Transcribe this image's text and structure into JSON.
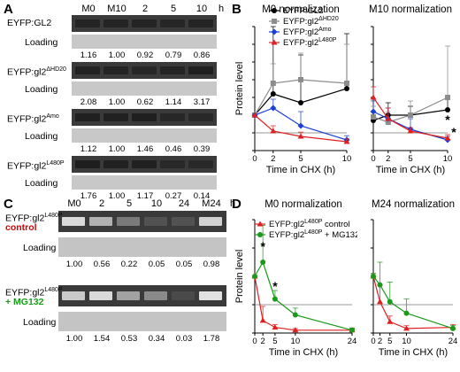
{
  "panel_labels": {
    "a": "A",
    "b": "B",
    "c": "C",
    "d": "D"
  },
  "panelA": {
    "lanes": [
      "M0",
      "M10",
      "2",
      "5",
      "10"
    ],
    "unit": "h",
    "loading_label": "Loading",
    "blots": [
      {
        "name": "EYFP:GL2",
        "quant": [
          "1.16",
          "1.00",
          "0.92",
          "0.79",
          "0.86"
        ],
        "intensity": [
          0.55,
          0.55,
          0.5,
          0.45,
          0.5
        ]
      },
      {
        "name": "EYFP:gl2",
        "sup": "ΔHD20",
        "quant": [
          "2.08",
          "1.00",
          "0.62",
          "1.14",
          "3.17"
        ],
        "intensity": [
          0.7,
          0.5,
          0.35,
          0.55,
          0.9
        ]
      },
      {
        "name": "EYFP:gl2",
        "sup": "Amo",
        "quant": [
          "1.12",
          "1.00",
          "1.46",
          "0.46",
          "0.39"
        ],
        "intensity": [
          0.8,
          0.75,
          0.9,
          0.35,
          0.3
        ]
      },
      {
        "name": "EYFP:gl2",
        "sup": "L480P",
        "quant": [
          "1.76",
          "1.00",
          "1.17",
          "0.27",
          "0.14"
        ],
        "intensity": [
          0.95,
          0.75,
          0.85,
          0.25,
          0.15
        ]
      }
    ]
  },
  "panelC": {
    "lanes": [
      "M0",
      "2",
      "5",
      "10",
      "24",
      "M24"
    ],
    "unit": "h",
    "loading_label": "Loading",
    "blots": [
      {
        "name": "EYFP:gl2",
        "sup": "L480P",
        "sub": "control",
        "sub_color": "#d40000",
        "quant": [
          "1.00",
          "0.56",
          "0.22",
          "0.05",
          "0.05",
          "0.98"
        ],
        "intensity": [
          0.95,
          0.7,
          0.35,
          0.1,
          0.1,
          0.9
        ]
      },
      {
        "name": "EYFP:gl2",
        "sup": "L480P",
        "sub": "+ MG132",
        "sub_color": "#1a9a1a",
        "quant": [
          "1.00",
          "1.54",
          "0.53",
          "0.34",
          "0.03",
          "1.78"
        ],
        "intensity": [
          0.85,
          0.95,
          0.6,
          0.45,
          0.05,
          1.0
        ]
      }
    ]
  },
  "chart_data": [
    {
      "type": "line",
      "title": "M0 normalization",
      "xlabel": "Time in CHX (h)",
      "ylabel": "Protein level",
      "x": [
        0,
        2,
        5,
        10
      ],
      "xticks": [
        0,
        2,
        5,
        10
      ],
      "ylim": [
        0,
        3.5
      ],
      "yticks": [
        0,
        0.5,
        1,
        1.5,
        2,
        2.5,
        3,
        3.5
      ],
      "series": [
        {
          "name": "EYFP:GL2",
          "color": "#000000",
          "marker": "circle",
          "values": [
            1.0,
            1.6,
            1.35,
            1.75
          ],
          "err": [
            0,
            1.9,
            1.35,
            1.55
          ]
        },
        {
          "name": "EYFP:gl2ΔHD20",
          "color": "#8c8c8c",
          "marker": "square",
          "values": [
            1.0,
            1.9,
            2.0,
            1.9
          ],
          "err": [
            0,
            0.55,
            0.75,
            1.1
          ]
        },
        {
          "name": "EYFP:gl2Amo",
          "color": "#1a3fd4",
          "marker": "diamond",
          "values": [
            1.0,
            1.2,
            0.7,
            0.3
          ],
          "err": [
            0,
            0.25,
            0.4,
            0.12
          ]
        },
        {
          "name": "EYFP:gl2L480P",
          "color": "#e02020",
          "marker": "triangle",
          "values": [
            1.0,
            0.55,
            0.4,
            0.25
          ],
          "err": [
            0,
            0.15,
            0.12,
            0.08
          ]
        }
      ],
      "legend": [
        {
          "label": "EYFP:GL2",
          "sup": ""
        },
        {
          "label": "EYFP:gl2",
          "sup": "ΔHD20"
        },
        {
          "label": "EYFP:gl2",
          "sup": "Amo"
        },
        {
          "label": "EYFP:gl2",
          "sup": "L480P"
        }
      ],
      "legend_position": "top-right"
    },
    {
      "type": "line",
      "title": "M10 normalization",
      "xlabel": "Time in CHX (h)",
      "ylabel": "",
      "x": [
        0,
        2,
        5,
        10
      ],
      "xticks": [
        0,
        2,
        5,
        10
      ],
      "ylim": [
        0,
        3.5
      ],
      "yticks": [
        0,
        0.5,
        1,
        1.5,
        2,
        2.5,
        3,
        3.5
      ],
      "annotations": [
        "*",
        "*"
      ],
      "series": [
        {
          "name": "EYFP:GL2",
          "color": "#000000",
          "marker": "circle",
          "values": [
            0.85,
            1.0,
            1.0,
            1.15
          ],
          "err": [
            0.15,
            0.35,
            0.25,
            0.3
          ]
        },
        {
          "name": "EYFP:gl2ΔHD20",
          "color": "#8c8c8c",
          "marker": "square",
          "values": [
            0.95,
            0.8,
            1.0,
            1.5
          ],
          "err": [
            0.3,
            0.3,
            0.4,
            1.45
          ]
        },
        {
          "name": "EYFP:gl2Amo",
          "color": "#1a3fd4",
          "marker": "diamond",
          "values": [
            1.1,
            0.9,
            0.6,
            0.3
          ],
          "err": [
            0.3,
            0.3,
            0.3,
            0.1
          ]
        },
        {
          "name": "EYFP:gl2L480P",
          "color": "#e02020",
          "marker": "triangle",
          "values": [
            1.5,
            0.9,
            0.55,
            0.35
          ],
          "err": [
            0.3,
            0.3,
            0.1,
            0.1
          ]
        }
      ]
    },
    {
      "type": "line",
      "title": "M0 normalization",
      "xlabel": "Time in CHX (h)",
      "ylabel": "Protein level",
      "x": [
        0,
        2,
        5,
        10,
        24
      ],
      "xticks": [
        0,
        2,
        5,
        10,
        24
      ],
      "ylim": [
        0,
        2
      ],
      "yticks": [
        0,
        0.5,
        1,
        1.5,
        2
      ],
      "annotations": [
        "*",
        "*"
      ],
      "series": [
        {
          "name": "EYFP:gl2L480P control",
          "color": "#e02020",
          "marker": "triangle",
          "values": [
            1.0,
            0.22,
            0.1,
            0.05,
            0.05
          ],
          "err": [
            0,
            0.25,
            0.05,
            0.03,
            0.03
          ]
        },
        {
          "name": "EYFP:gl2L480P + MG132",
          "color": "#1a9a1a",
          "marker": "circle",
          "values": [
            1.0,
            1.25,
            0.6,
            0.32,
            0.05
          ],
          "err": [
            0,
            0.65,
            0.15,
            0.12,
            0.04
          ]
        }
      ],
      "legend": [
        {
          "label": "EYFP:gl2",
          "sup": "L480P",
          "suffix": " control"
        },
        {
          "label": "EYFP:gl2",
          "sup": "L480P",
          "suffix": " + MG132"
        }
      ],
      "legend_position": "top-right"
    },
    {
      "type": "line",
      "title": "M24 normalization",
      "xlabel": "Time in CHX (h)",
      "ylabel": "",
      "x": [
        0,
        2,
        5,
        10,
        24
      ],
      "xticks": [
        0,
        2,
        5,
        10,
        24
      ],
      "ylim": [
        0,
        2
      ],
      "yticks": [
        0,
        0.5,
        1,
        1.5,
        2
      ],
      "series": [
        {
          "name": "EYFP:gl2L480P control",
          "color": "#e02020",
          "marker": "triangle",
          "values": [
            1.0,
            0.55,
            0.2,
            0.08,
            0.1
          ],
          "err": [
            0.05,
            0.3,
            0.1,
            0.05,
            0.05
          ]
        },
        {
          "name": "EYFP:gl2L480P + MG132",
          "color": "#1a9a1a",
          "marker": "circle",
          "values": [
            1.0,
            0.85,
            0.55,
            0.35,
            0.08
          ],
          "err": [
            0.05,
            0.4,
            0.35,
            0.25,
            0.05
          ]
        }
      ]
    }
  ]
}
